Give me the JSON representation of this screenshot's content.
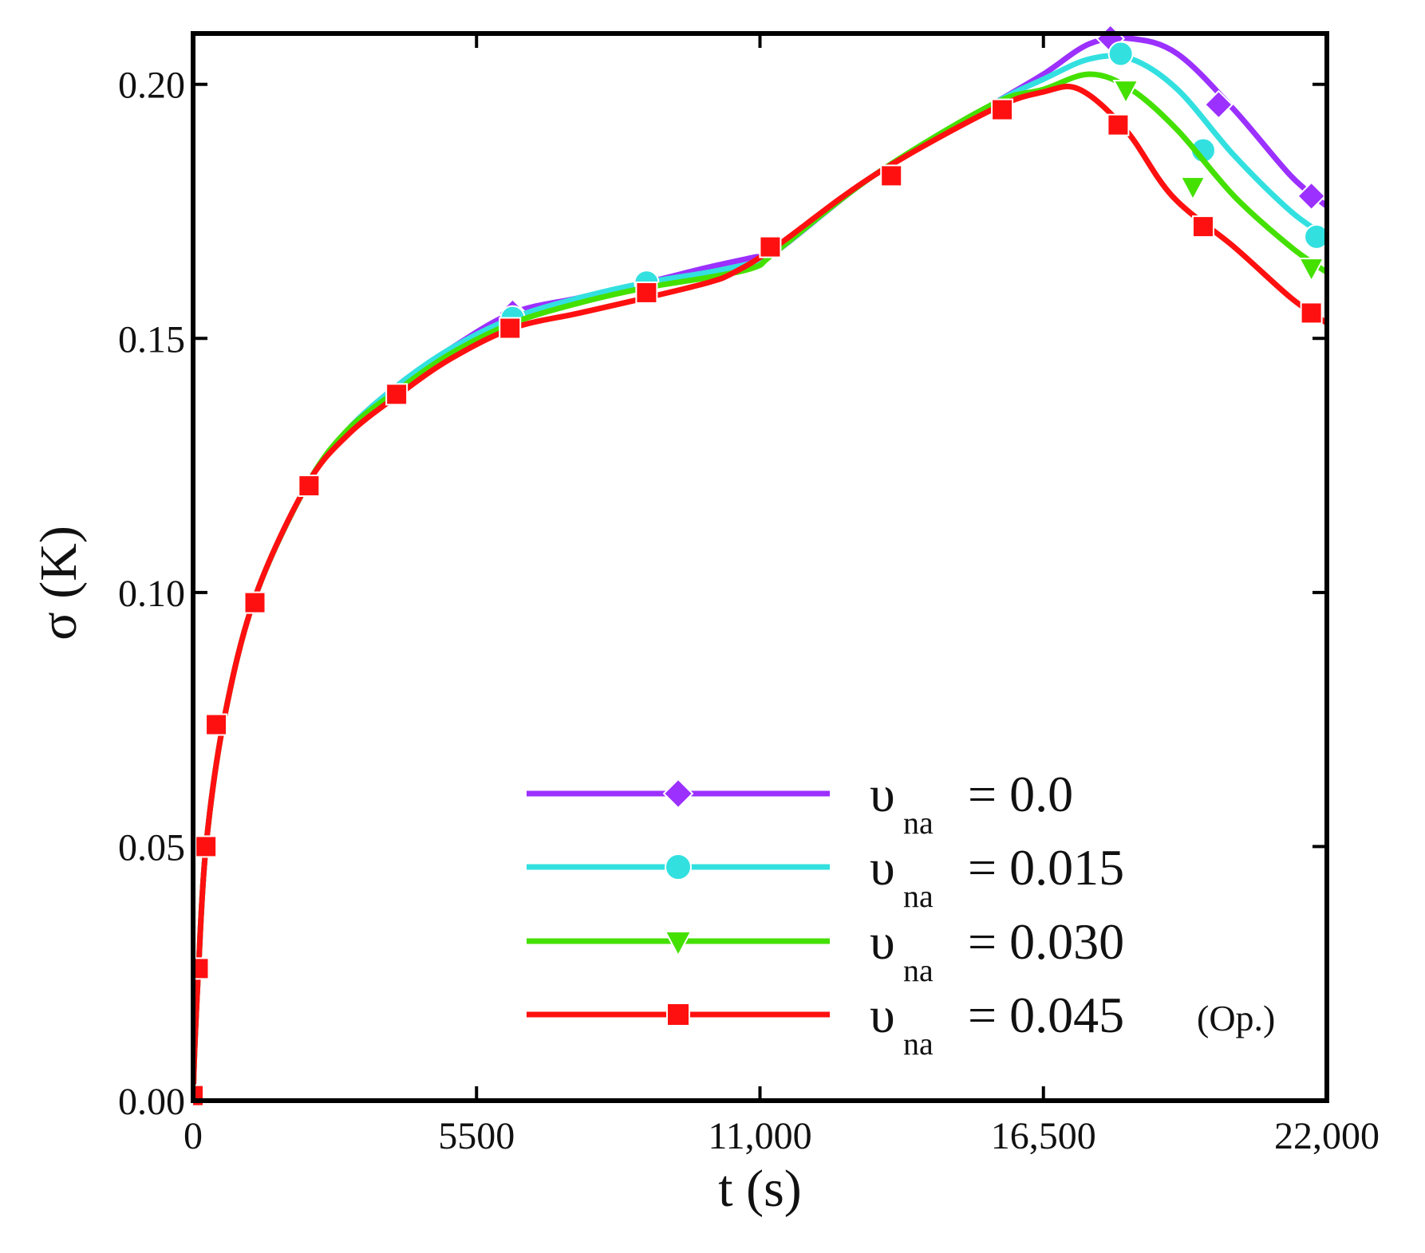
{
  "chart_data": {
    "type": "line",
    "title": "",
    "xlabel": "t (s)",
    "ylabel": "σ (K)",
    "xlim": [
      0,
      22000
    ],
    "ylim": [
      0,
      0.21
    ],
    "xticks": [
      0,
      5500,
      11000,
      16500,
      22000
    ],
    "xtick_labels": [
      "0",
      "5500",
      "11,000",
      "16,500",
      "22,000"
    ],
    "yticks": [
      0,
      0.05,
      0.1,
      0.15,
      0.2
    ],
    "ytick_labels": [
      "0.00",
      "0.05",
      "0.10",
      "0.15",
      "0.20"
    ],
    "grid": false,
    "legend_position": "bottom-right",
    "series": [
      {
        "name": "υna = 0.0",
        "legend_symbol": "υ",
        "legend_subscript": "na",
        "legend_value": "= 0.0",
        "legend_note": "",
        "color": "#9b30ff",
        "marker": "diamond",
        "x": [
          0,
          30,
          100,
          250,
          600,
          1200,
          2200,
          3000,
          4000,
          5000,
          6200,
          7500,
          8800,
          10000,
          10900,
          11300,
          13200,
          15500,
          16500,
          17400,
          18200,
          19100,
          20200,
          21300,
          22000
        ],
        "y": [
          0,
          0.01,
          0.025,
          0.05,
          0.075,
          0.099,
          0.121,
          0.132,
          0.141,
          0.148,
          0.155,
          0.158,
          0.161,
          0.164,
          0.166,
          0.167,
          0.182,
          0.196,
          0.202,
          0.208,
          0.209,
          0.206,
          0.195,
          0.182,
          0.176
        ],
        "marker_x": [
          6200,
          8800,
          17800,
          19900,
          21700
        ],
        "marker_y": [
          0.155,
          0.161,
          0.209,
          0.196,
          0.178
        ]
      },
      {
        "name": "υna = 0.015",
        "legend_symbol": "υ",
        "legend_subscript": "na",
        "legend_value": "= 0.015",
        "legend_note": "",
        "color": "#33e0e0",
        "marker": "circle",
        "x": [
          0,
          30,
          100,
          250,
          600,
          1200,
          2200,
          3000,
          4000,
          5000,
          6200,
          7500,
          8800,
          10000,
          10900,
          11300,
          13200,
          15500,
          16500,
          17400,
          18200,
          19100,
          20200,
          21300,
          22000
        ],
        "y": [
          0,
          0.01,
          0.025,
          0.05,
          0.075,
          0.099,
          0.121,
          0.132,
          0.141,
          0.148,
          0.154,
          0.158,
          0.161,
          0.163,
          0.165,
          0.167,
          0.182,
          0.196,
          0.201,
          0.205,
          0.205,
          0.199,
          0.186,
          0.175,
          0.17
        ],
        "marker_x": [
          6200,
          8800,
          18000,
          19600,
          21800
        ],
        "marker_y": [
          0.154,
          0.161,
          0.206,
          0.187,
          0.17
        ]
      },
      {
        "name": "υna = 0.030",
        "legend_symbol": "υ",
        "legend_subscript": "na",
        "legend_value": "= 0.030",
        "legend_note": "",
        "color": "#44e000",
        "marker": "triangle-down",
        "x": [
          0,
          30,
          100,
          250,
          600,
          1200,
          2200,
          3000,
          4000,
          5000,
          6200,
          7500,
          8800,
          10000,
          10900,
          11300,
          13200,
          15500,
          16500,
          17400,
          18200,
          19100,
          20200,
          21300,
          22000
        ],
        "y": [
          0,
          0.01,
          0.025,
          0.05,
          0.075,
          0.099,
          0.121,
          0.132,
          0.14,
          0.147,
          0.153,
          0.157,
          0.16,
          0.162,
          0.164,
          0.167,
          0.182,
          0.196,
          0.199,
          0.202,
          0.199,
          0.191,
          0.178,
          0.168,
          0.163
        ],
        "marker_x": [
          18100,
          19400,
          21700
        ],
        "marker_y": [
          0.199,
          0.18,
          0.164
        ]
      },
      {
        "name": "υna = 0.045 (Op.)",
        "legend_symbol": "υ",
        "legend_subscript": "na",
        "legend_value": "= 0.045",
        "legend_note": "(Op.)",
        "color": "#ff1010",
        "marker": "square",
        "x": [
          0,
          30,
          100,
          250,
          600,
          1200,
          2200,
          3000,
          4000,
          5000,
          6200,
          7500,
          8800,
          10000,
          10500,
          11300,
          13200,
          15500,
          16500,
          17200,
          18100,
          19000,
          20200,
          21300,
          22000
        ],
        "y": [
          0,
          0.01,
          0.025,
          0.05,
          0.075,
          0.099,
          0.121,
          0.131,
          0.139,
          0.146,
          0.152,
          0.155,
          0.158,
          0.161,
          0.163,
          0.168,
          0.182,
          0.195,
          0.1985,
          0.199,
          0.191,
          0.178,
          0.168,
          0.158,
          0.153
        ],
        "marker_x": [
          0,
          100,
          250,
          450,
          1200,
          2250,
          3950,
          6150,
          8800,
          11200,
          13550,
          15700,
          17950,
          19600,
          21700
        ],
        "marker_y": [
          0.001,
          0.026,
          0.05,
          0.074,
          0.098,
          0.121,
          0.139,
          0.152,
          0.159,
          0.168,
          0.182,
          0.195,
          0.192,
          0.172,
          0.155
        ]
      }
    ]
  }
}
